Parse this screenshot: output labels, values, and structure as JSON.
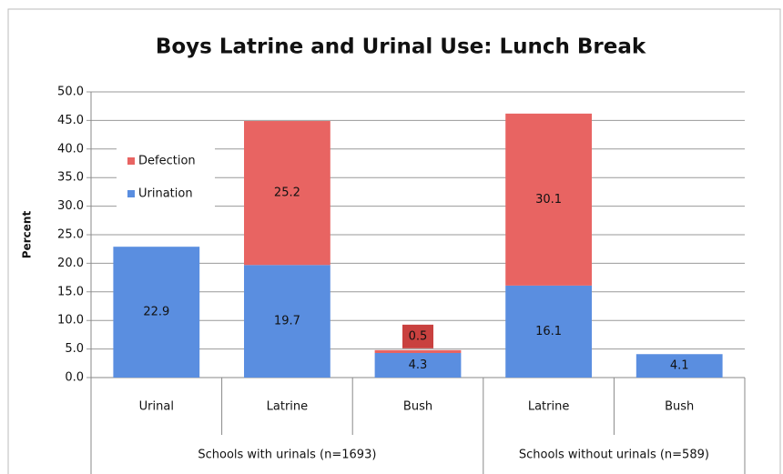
{
  "chart_data": {
    "type": "bar",
    "stacked": true,
    "title": "Boys Latrine and Urinal Use: Lunch Break",
    "ylabel": "Percent",
    "groups": [
      {
        "label": "Schools with urinals (n=1693)",
        "categories": [
          "Urinal",
          "Latrine",
          "Bush"
        ]
      },
      {
        "label": "Schools without urinals (n=589)",
        "categories": [
          "Latrine",
          "Bush"
        ]
      }
    ],
    "series": [
      {
        "name": "Urination",
        "color": "#5a8ee0",
        "values": [
          22.9,
          19.7,
          4.3,
          16.1,
          4.1
        ]
      },
      {
        "name": "Defection",
        "color": "#e86462",
        "values": [
          null,
          25.2,
          0.5,
          30.1,
          null
        ]
      }
    ],
    "ylim": [
      0,
      50
    ],
    "yticks": [
      {
        "value": 0,
        "label": "0.0"
      },
      {
        "value": 5,
        "label": "5.0"
      },
      {
        "value": 10,
        "label": "10.0"
      },
      {
        "value": 15,
        "label": "15.0"
      },
      {
        "value": 20,
        "label": "20.0"
      },
      {
        "value": 25,
        "label": "25.0"
      },
      {
        "value": 30,
        "label": "30.0"
      },
      {
        "value": 35,
        "label": "35.0"
      },
      {
        "value": 40,
        "label": "40.0"
      },
      {
        "value": 45,
        "label": "45.0"
      },
      {
        "value": 50,
        "label": "50.0"
      }
    ],
    "grid": true,
    "legend": "left"
  }
}
